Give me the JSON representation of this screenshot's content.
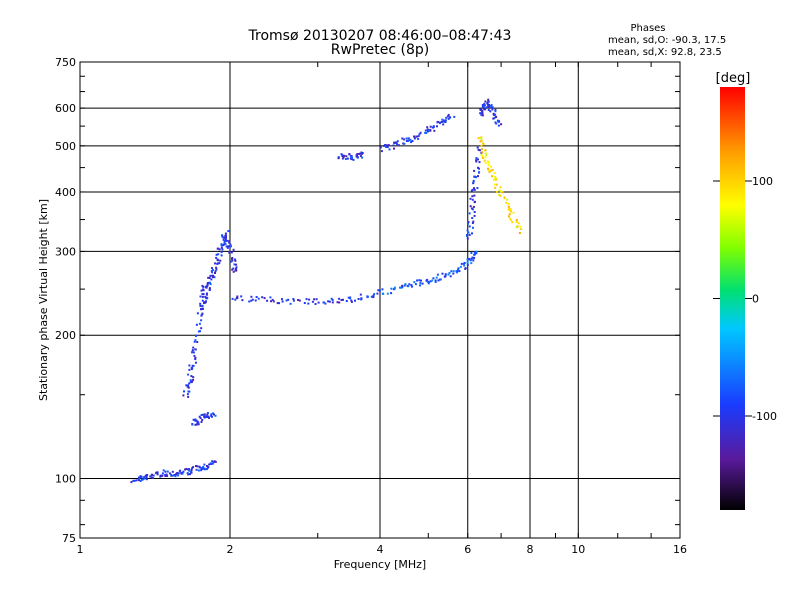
{
  "chart_data": {
    "type": "scatter",
    "title": "Tromsø 20130207 08:46:00–08:47:43",
    "subtitle": "RwPretec (8p)",
    "xlabel": "Frequency [MHz]",
    "ylabel": "Stationary phase Virtual Height [km]",
    "x_scale": "log",
    "y_scale": "log",
    "xlim": [
      1,
      16
    ],
    "ylim": [
      75,
      750
    ],
    "x_ticks": [
      1,
      2,
      4,
      6,
      8,
      10,
      16
    ],
    "y_ticks": [
      75,
      100,
      200,
      300,
      400,
      500,
      600,
      750
    ],
    "grid": true,
    "stats": {
      "heading": "Phases",
      "o_line": "mean, sd,O: -90.3, 17.5",
      "x_line": "mean, sd,X:  92.8, 23.5"
    },
    "colorbar": {
      "label": "[deg]",
      "range": [
        -180,
        180
      ],
      "ticks": [
        100,
        0,
        -100
      ],
      "colors": [
        "#000000",
        "#5a1a9c",
        "#1a3cff",
        "#00c8ff",
        "#00e070",
        "#80ff00",
        "#ffff00",
        "#ff9a00",
        "#ff0000"
      ]
    },
    "trace_segments": [
      {
        "x": [
          1.28,
          1.35,
          1.45,
          1.55,
          1.65,
          1.75,
          1.85
        ],
        "y": [
          100,
          101,
          103,
          103,
          104,
          106,
          108
        ],
        "phase": -100
      },
      {
        "x": [
          1.62,
          1.66,
          1.7,
          1.74,
          1.78
        ],
        "y": [
          150,
          165,
          190,
          230,
          260
        ],
        "phase": -100
      },
      {
        "x": [
          1.75,
          1.8,
          1.85,
          1.9,
          1.95,
          2.0,
          2.05
        ],
        "y": [
          230,
          255,
          275,
          300,
          330,
          300,
          270
        ],
        "phase": -100
      },
      {
        "x": [
          2.0,
          2.4,
          2.9,
          3.4,
          3.9
        ],
        "y": [
          240,
          238,
          236,
          238,
          245
        ],
        "phase": -100
      },
      {
        "x": [
          3.9,
          4.5,
          5.0,
          5.5,
          6.0,
          6.2
        ],
        "y": [
          245,
          255,
          262,
          270,
          285,
          300
        ],
        "phase": -80
      },
      {
        "x": [
          6.0,
          6.1,
          6.2,
          6.3
        ],
        "y": [
          320,
          370,
          430,
          500
        ],
        "phase": -100
      },
      {
        "x": [
          6.3,
          6.5,
          6.8,
          7.2,
          7.6
        ],
        "y": [
          520,
          470,
          420,
          370,
          330
        ],
        "phase": 90
      },
      {
        "x": [
          6.3,
          6.5,
          6.7,
          6.9
        ],
        "y": [
          580,
          620,
          600,
          550
        ],
        "phase": -100
      },
      {
        "x": [
          3.3,
          3.5,
          3.7
        ],
        "y": [
          480,
          475,
          480
        ],
        "phase": -100
      },
      {
        "x": [
          4.0,
          4.4,
          4.8,
          5.2,
          5.6
        ],
        "y": [
          495,
          510,
          530,
          555,
          580
        ],
        "phase": -100
      },
      {
        "x": [
          1.68,
          1.75,
          1.85
        ],
        "y": [
          130,
          135,
          138
        ],
        "phase": -100
      }
    ]
  }
}
